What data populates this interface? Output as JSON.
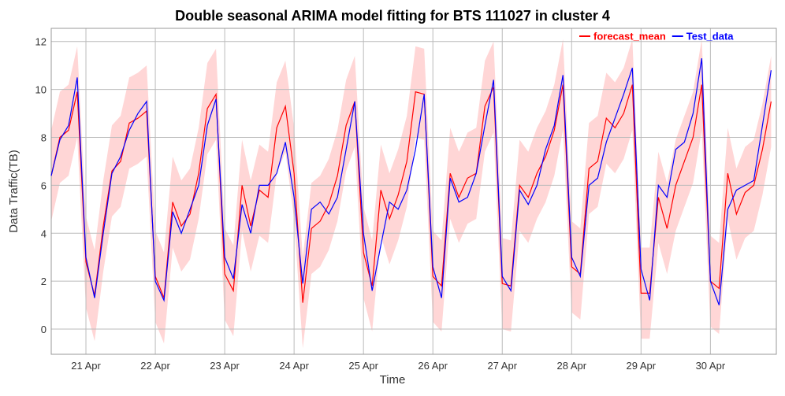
{
  "chart_data": {
    "type": "line",
    "title": "Double seasonal ARIMA model fitting for BTS 111027 in cluster 4",
    "x_label": "Time",
    "y_label": "Data Traffic(TB)",
    "x": [
      20.5,
      20.625,
      20.75,
      20.875,
      21,
      21.125,
      21.25,
      21.375,
      21.5,
      21.625,
      21.75,
      21.875,
      22,
      22.125,
      22.25,
      22.375,
      22.5,
      22.625,
      22.75,
      22.875,
      23,
      23.125,
      23.25,
      23.375,
      23.5,
      23.625,
      23.75,
      23.875,
      24,
      24.125,
      24.25,
      24.375,
      24.5,
      24.625,
      24.75,
      24.875,
      25,
      25.125,
      25.25,
      25.375,
      25.5,
      25.625,
      25.75,
      25.875,
      26,
      26.125,
      26.25,
      26.375,
      26.5,
      26.625,
      26.75,
      26.875,
      27,
      27.125,
      27.25,
      27.375,
      27.5,
      27.625,
      27.75,
      27.875,
      28,
      28.125,
      28.25,
      28.375,
      28.5,
      28.625,
      28.75,
      28.875,
      29,
      29.125,
      29.25,
      29.375,
      29.5,
      29.625,
      29.75,
      29.875,
      30,
      30.125,
      30.25,
      30.375,
      30.5,
      30.625,
      30.75,
      30.875
    ],
    "series": [
      {
        "name": "forecast_mean",
        "color": "#ff0000",
        "values": [
          6.4,
          8.0,
          8.3,
          9.9,
          2.8,
          1.4,
          4.3,
          6.6,
          7.0,
          8.6,
          8.8,
          9.1,
          2.2,
          1.3,
          5.3,
          4.3,
          4.8,
          6.5,
          9.2,
          9.8,
          2.3,
          1.6,
          6.0,
          4.3,
          5.8,
          5.5,
          8.4,
          9.3,
          6.5,
          1.1,
          4.2,
          4.5,
          5.2,
          6.4,
          8.5,
          9.5,
          3.2,
          1.8,
          5.8,
          4.6,
          5.6,
          7.0,
          9.9,
          9.8,
          2.2,
          1.8,
          6.5,
          5.5,
          6.3,
          6.5,
          9.3,
          10.1,
          1.9,
          1.8,
          6.0,
          5.5,
          6.5,
          7.2,
          8.3,
          10.2,
          2.6,
          2.3,
          6.7,
          7.0,
          8.8,
          8.4,
          9.0,
          10.2,
          1.5,
          1.5,
          5.5,
          4.2,
          6.0,
          7.0,
          8.0,
          10.2,
          2.0,
          1.7,
          6.5,
          4.8,
          5.7,
          6.0,
          7.5,
          9.5
        ]
      },
      {
        "name": "Test_data",
        "color": "#0000ff",
        "values": [
          6.4,
          7.9,
          8.5,
          10.5,
          3.0,
          1.3,
          4.0,
          6.5,
          7.2,
          8.3,
          9.0,
          9.5,
          2.0,
          1.2,
          4.9,
          4.0,
          5.0,
          6.0,
          8.5,
          9.6,
          3.0,
          2.1,
          5.2,
          4.0,
          6.0,
          6.0,
          6.5,
          7.8,
          5.5,
          1.9,
          5.0,
          5.3,
          4.8,
          5.5,
          7.5,
          9.5,
          4.0,
          1.6,
          3.5,
          5.3,
          5.0,
          5.8,
          7.5,
          9.8,
          2.6,
          1.3,
          6.3,
          5.3,
          5.5,
          6.5,
          8.5,
          10.4,
          2.2,
          1.6,
          5.8,
          5.2,
          6.0,
          7.5,
          8.5,
          10.6,
          3.0,
          2.2,
          6.0,
          6.3,
          7.8,
          8.8,
          9.8,
          10.9,
          2.5,
          1.2,
          6.0,
          5.5,
          7.5,
          7.8,
          9.0,
          11.3,
          2.0,
          1.0,
          5.0,
          5.8,
          6.0,
          6.2,
          8.5,
          10.8
        ]
      }
    ],
    "band": {
      "color": "#ffd6d6",
      "lower": [
        4.5,
        6.1,
        6.4,
        8.0,
        0.9,
        -0.5,
        2.4,
        4.7,
        5.1,
        6.7,
        6.9,
        7.2,
        0.3,
        -0.6,
        3.4,
        2.4,
        2.9,
        4.6,
        7.3,
        7.9,
        0.4,
        -0.3,
        4.1,
        2.4,
        3.9,
        3.6,
        6.5,
        7.4,
        4.6,
        -0.8,
        2.3,
        2.6,
        3.3,
        4.5,
        6.6,
        7.6,
        1.3,
        -0.1,
        3.9,
        2.7,
        3.7,
        5.1,
        8.0,
        7.9,
        0.3,
        -0.1,
        4.6,
        3.6,
        4.4,
        4.6,
        7.4,
        8.2,
        0.0,
        -0.1,
        4.1,
        3.6,
        4.6,
        5.3,
        6.4,
        8.3,
        0.7,
        0.4,
        4.8,
        5.1,
        6.9,
        6.5,
        7.1,
        8.3,
        -0.4,
        -0.4,
        3.6,
        2.3,
        4.1,
        5.1,
        6.1,
        8.3,
        0.1,
        -0.2,
        4.6,
        2.9,
        3.8,
        4.1,
        5.6,
        7.6
      ],
      "upper": [
        8.3,
        9.9,
        10.2,
        11.8,
        4.7,
        3.3,
        6.2,
        8.5,
        8.9,
        10.5,
        10.7,
        11.0,
        4.1,
        3.2,
        7.2,
        6.2,
        6.7,
        8.4,
        11.1,
        11.7,
        4.2,
        3.5,
        7.9,
        6.2,
        7.7,
        7.4,
        10.3,
        11.2,
        8.4,
        3.0,
        6.1,
        6.4,
        7.1,
        8.3,
        10.4,
        11.4,
        5.1,
        3.7,
        7.7,
        6.5,
        7.5,
        8.9,
        11.8,
        11.7,
        4.1,
        3.7,
        8.4,
        7.4,
        8.2,
        8.4,
        11.2,
        12.0,
        3.8,
        3.7,
        7.9,
        7.4,
        8.4,
        9.1,
        10.2,
        12.1,
        4.5,
        4.2,
        8.6,
        8.9,
        10.7,
        10.3,
        10.9,
        12.1,
        3.4,
        3.4,
        7.4,
        6.1,
        7.9,
        8.9,
        9.9,
        12.1,
        3.9,
        3.6,
        8.4,
        6.7,
        7.6,
        7.9,
        9.4,
        11.4
      ]
    },
    "xlim": [
      20.5,
      30.95
    ],
    "xticks": [
      {
        "value": 21,
        "label": "21 Apr"
      },
      {
        "value": 22,
        "label": "22 Apr"
      },
      {
        "value": 23,
        "label": "23 Apr"
      },
      {
        "value": 24,
        "label": "24 Apr"
      },
      {
        "value": 25,
        "label": "25 Apr"
      },
      {
        "value": 26,
        "label": "26 Apr"
      },
      {
        "value": 27,
        "label": "27 Apr"
      },
      {
        "value": 28,
        "label": "28 Apr"
      },
      {
        "value": 29,
        "label": "29 Apr"
      },
      {
        "value": 30,
        "label": "30 Apr"
      }
    ],
    "ylim": [
      -1.05,
      12.55
    ],
    "yticks": [
      0,
      2,
      4,
      6,
      8,
      10,
      12
    ],
    "grid": true,
    "legend": "top-right"
  }
}
